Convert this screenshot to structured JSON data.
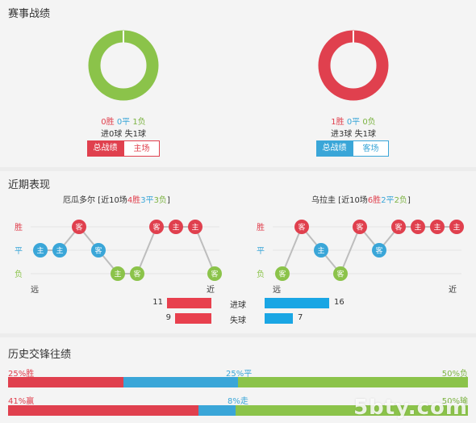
{
  "colors": {
    "win": "#e0404e",
    "draw": "#3aa6d8",
    "loss": "#8bc34a",
    "bar_red": "#e8404e",
    "bar_blue": "#1aa6e4"
  },
  "record": {
    "title": "赛事战绩",
    "left": {
      "wins": "0胜",
      "draws": "0平",
      "losses": "1负",
      "goals": "进0球  失1球",
      "tab_active": "总战绩",
      "tab_inactive": "主场",
      "donut_wins": 0,
      "donut_draws": 0,
      "donut_losses": 1
    },
    "right": {
      "wins": "1胜",
      "draws": "0平",
      "losses": "0负",
      "goals": "进3球  失1球",
      "tab_active": "总战绩",
      "tab_inactive": "客场",
      "donut_wins": 1,
      "donut_draws": 0,
      "donut_losses": 0
    }
  },
  "recent": {
    "title": "近期表现",
    "axis": {
      "win": "胜",
      "draw": "平",
      "loss": "负",
      "far": "远",
      "near": "近"
    },
    "left_team": {
      "name": "厄瓜多尔 [近10场",
      "w": "4胜",
      "d": "3平",
      "l": "3负",
      "close": "]",
      "games": [
        {
          "r": "D",
          "v": "主"
        },
        {
          "r": "D",
          "v": "主"
        },
        {
          "r": "W",
          "v": "客"
        },
        {
          "r": "D",
          "v": "客"
        },
        {
          "r": "L",
          "v": "主"
        },
        {
          "r": "L",
          "v": "客"
        },
        {
          "r": "W",
          "v": "客"
        },
        {
          "r": "W",
          "v": "主"
        },
        {
          "r": "W",
          "v": "主"
        },
        {
          "r": "L",
          "v": "客"
        }
      ]
    },
    "right_team": {
      "name": "乌拉圭 [近10场",
      "w": "6胜",
      "d": "2平",
      "l": "2负",
      "close": "]",
      "games": [
        {
          "r": "L",
          "v": "客"
        },
        {
          "r": "W",
          "v": "客"
        },
        {
          "r": "D",
          "v": "主"
        },
        {
          "r": "L",
          "v": "客"
        },
        {
          "r": "W",
          "v": "客"
        },
        {
          "r": "D",
          "v": "客"
        },
        {
          "r": "W",
          "v": "客"
        },
        {
          "r": "W",
          "v": "主"
        },
        {
          "r": "W",
          "v": "主"
        },
        {
          "r": "W",
          "v": "主"
        }
      ]
    },
    "stats": {
      "goals_for_label": "进球",
      "goals_against_label": "失球",
      "left_for": 11,
      "left_against": 9,
      "right_for": 16,
      "right_against": 7
    }
  },
  "history": {
    "title": "历史交锋往绩",
    "row1": {
      "left": "25%胜",
      "mid": "25%平",
      "right": "50%负",
      "p1": 25,
      "p2": 25,
      "p3": 50
    },
    "row2": {
      "left": "41%赢",
      "mid": "8%走",
      "right": "50%输",
      "p1": 41,
      "p2": 8,
      "p3": 50
    }
  },
  "watermark": "5bty.com"
}
